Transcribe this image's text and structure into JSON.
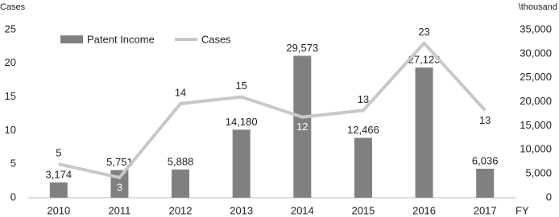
{
  "chart_data": {
    "type": "bar",
    "x_label": "FY",
    "y_label": "Cases",
    "y2_label": "\\thousand",
    "categories": [
      "2010",
      "2011",
      "2012",
      "2013",
      "2014",
      "2015",
      "2016",
      "2017"
    ],
    "series": [
      {
        "name": "Patent Income",
        "type": "bar",
        "axis": "y2",
        "color": "#808080",
        "values": [
          3174,
          5751,
          5888,
          14180,
          29573,
          12466,
          27123,
          6036
        ],
        "value_labels": [
          "3,174",
          "5,751",
          "5,888",
          "14,180",
          "29,573",
          "12,466",
          "27,123",
          "6,036"
        ]
      },
      {
        "name": "Cases",
        "type": "line",
        "color": "#c8c8c8",
        "values": [
          5,
          3,
          14,
          15,
          12,
          13,
          23,
          13
        ]
      }
    ],
    "ylim": [
      0,
      25
    ],
    "yticks": [
      0,
      5,
      10,
      15,
      20,
      25
    ],
    "y2lim": [
      0,
      35000
    ],
    "y2ticks": [
      0,
      {
        "value": 5000,
        "label": "5,000"
      },
      {
        "value": 10000,
        "label": "10,000"
      },
      {
        "value": 15000,
        "label": "15,000"
      },
      {
        "value": 20000,
        "label": "20,000"
      },
      {
        "value": 25000,
        "label": "25,000"
      },
      {
        "value": 30000,
        "label": "30,000"
      },
      {
        "value": 35000,
        "label": "35,000"
      }
    ],
    "legend": "upper left"
  }
}
